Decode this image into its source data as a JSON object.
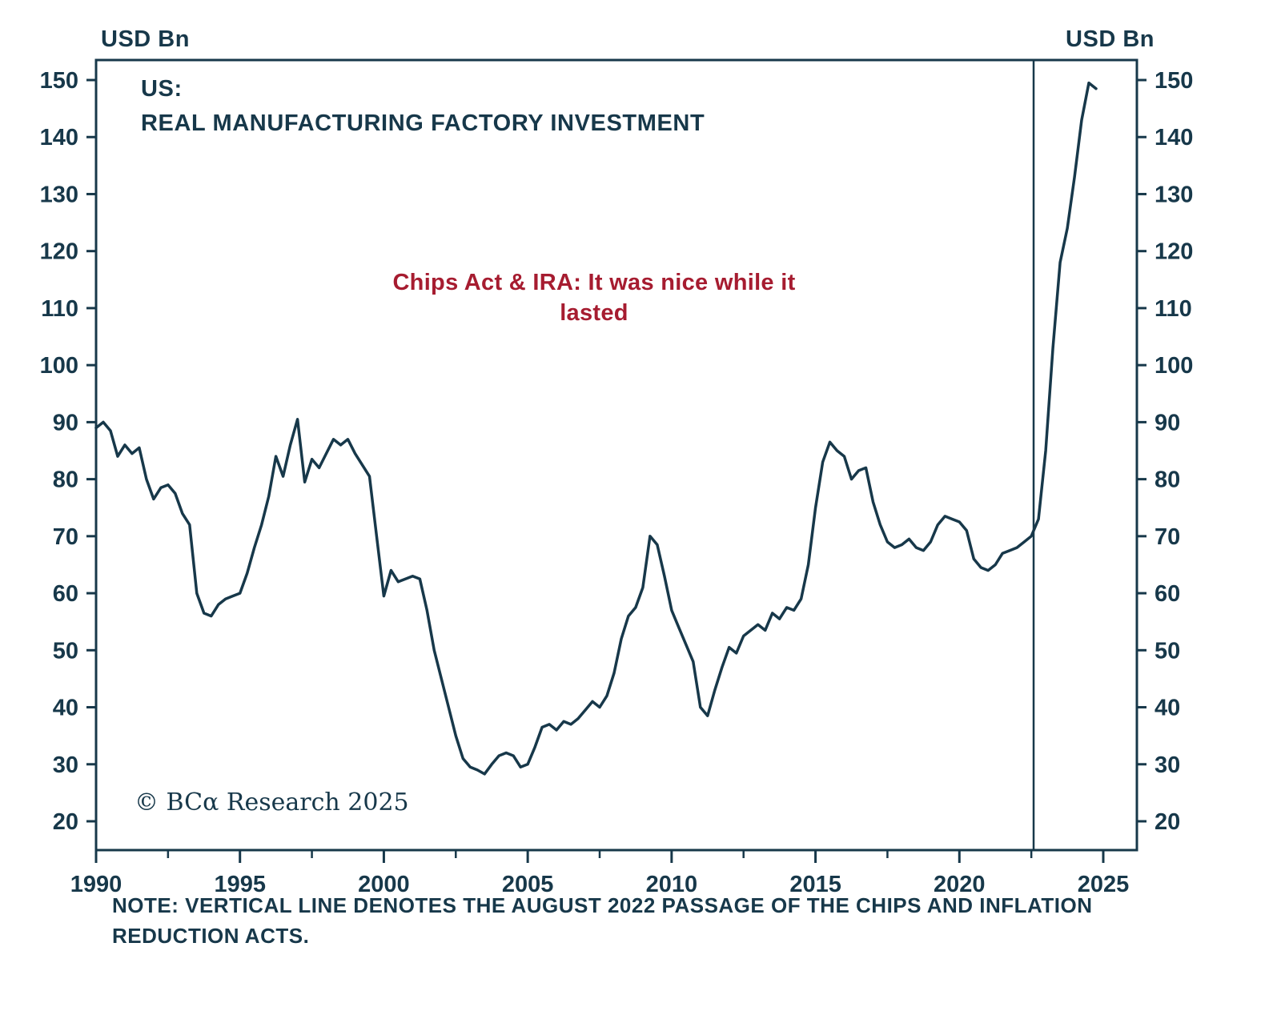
{
  "colors": {
    "ink": "#17384a",
    "line": "#17384a",
    "annotation_red": "#a61c30",
    "background": "#ffffff"
  },
  "header": {
    "y_unit_left": "USD Bn",
    "y_unit_right": "USD Bn"
  },
  "chart_title": {
    "line1": "US:",
    "line2": "REAL MANUFACTURING FACTORY INVESTMENT"
  },
  "annotation": {
    "line1": "Chips Act & IRA: It was nice while it",
    "line2": "lasted"
  },
  "copyright": {
    "text": "© BCα Research 2025"
  },
  "note": {
    "line1": "NOTE: VERTICAL LINE DENOTES THE AUGUST 2022 PASSAGE OF THE CHIPS AND INFLATION",
    "line2": "REDUCTION ACTS."
  },
  "chart_data": {
    "type": "line",
    "title": "US: REAL MANUFACTURING FACTORY INVESTMENT",
    "ylabel": "USD Bn",
    "unit": "USD Bn",
    "ylim": [
      20,
      150
    ],
    "yticks": [
      20,
      30,
      40,
      50,
      60,
      70,
      80,
      90,
      100,
      110,
      120,
      130,
      140,
      150
    ],
    "xticks": [
      1990,
      1995,
      2000,
      2005,
      2010,
      2015,
      2020,
      2025
    ],
    "x_minor_ticks": [
      1992.5,
      1997.5,
      2002.5,
      2007.5,
      2012.5,
      2017.5,
      2022.5
    ],
    "x_range_drawn": [
      1990,
      2026.2
    ],
    "grid": false,
    "vline_x": 2022.58,
    "vline_meaning": "August 2022 passage of the CHIPS and Inflation Reduction Acts",
    "series": [
      {
        "name": "US real manufacturing factory investment (USD Bn)",
        "x_start": 1990,
        "x_step_years": 0.25,
        "values": [
          89,
          90,
          88.5,
          84,
          86,
          84.5,
          85.5,
          80,
          76.5,
          78.5,
          79,
          77.5,
          74,
          72,
          60,
          56.5,
          56,
          58,
          59,
          59.5,
          60,
          63.5,
          68,
          72,
          77,
          84,
          80.5,
          86,
          90.5,
          79.5,
          83.5,
          82,
          84.5,
          87,
          86,
          87,
          84.5,
          82.5,
          80.5,
          70,
          59.5,
          64,
          62,
          62.5,
          63,
          62.5,
          57,
          50,
          45,
          40,
          35,
          31,
          29.5,
          29,
          28.3,
          30,
          31.5,
          32,
          31.5,
          29.5,
          30,
          33,
          36.5,
          37,
          36,
          37.5,
          37,
          38,
          39.5,
          41,
          40,
          42,
          46,
          52,
          56,
          57.5,
          61,
          70,
          68.5,
          63,
          57,
          54,
          51,
          48,
          40,
          38.5,
          43,
          47,
          50.5,
          49.5,
          52.5,
          53.5,
          54.5,
          53.5,
          56.5,
          55.5,
          57.5,
          57,
          59,
          65,
          75,
          83,
          86.5,
          85,
          84,
          80,
          81.5,
          82,
          76,
          72,
          69,
          68,
          68.5,
          69.5,
          68,
          67.5,
          69,
          72,
          73.5,
          73,
          72.5,
          71,
          66,
          64.5,
          64,
          65,
          67,
          67.5,
          68,
          69,
          70,
          73,
          85,
          103,
          118,
          124,
          133,
          143,
          149.5,
          148.5
        ]
      }
    ]
  }
}
